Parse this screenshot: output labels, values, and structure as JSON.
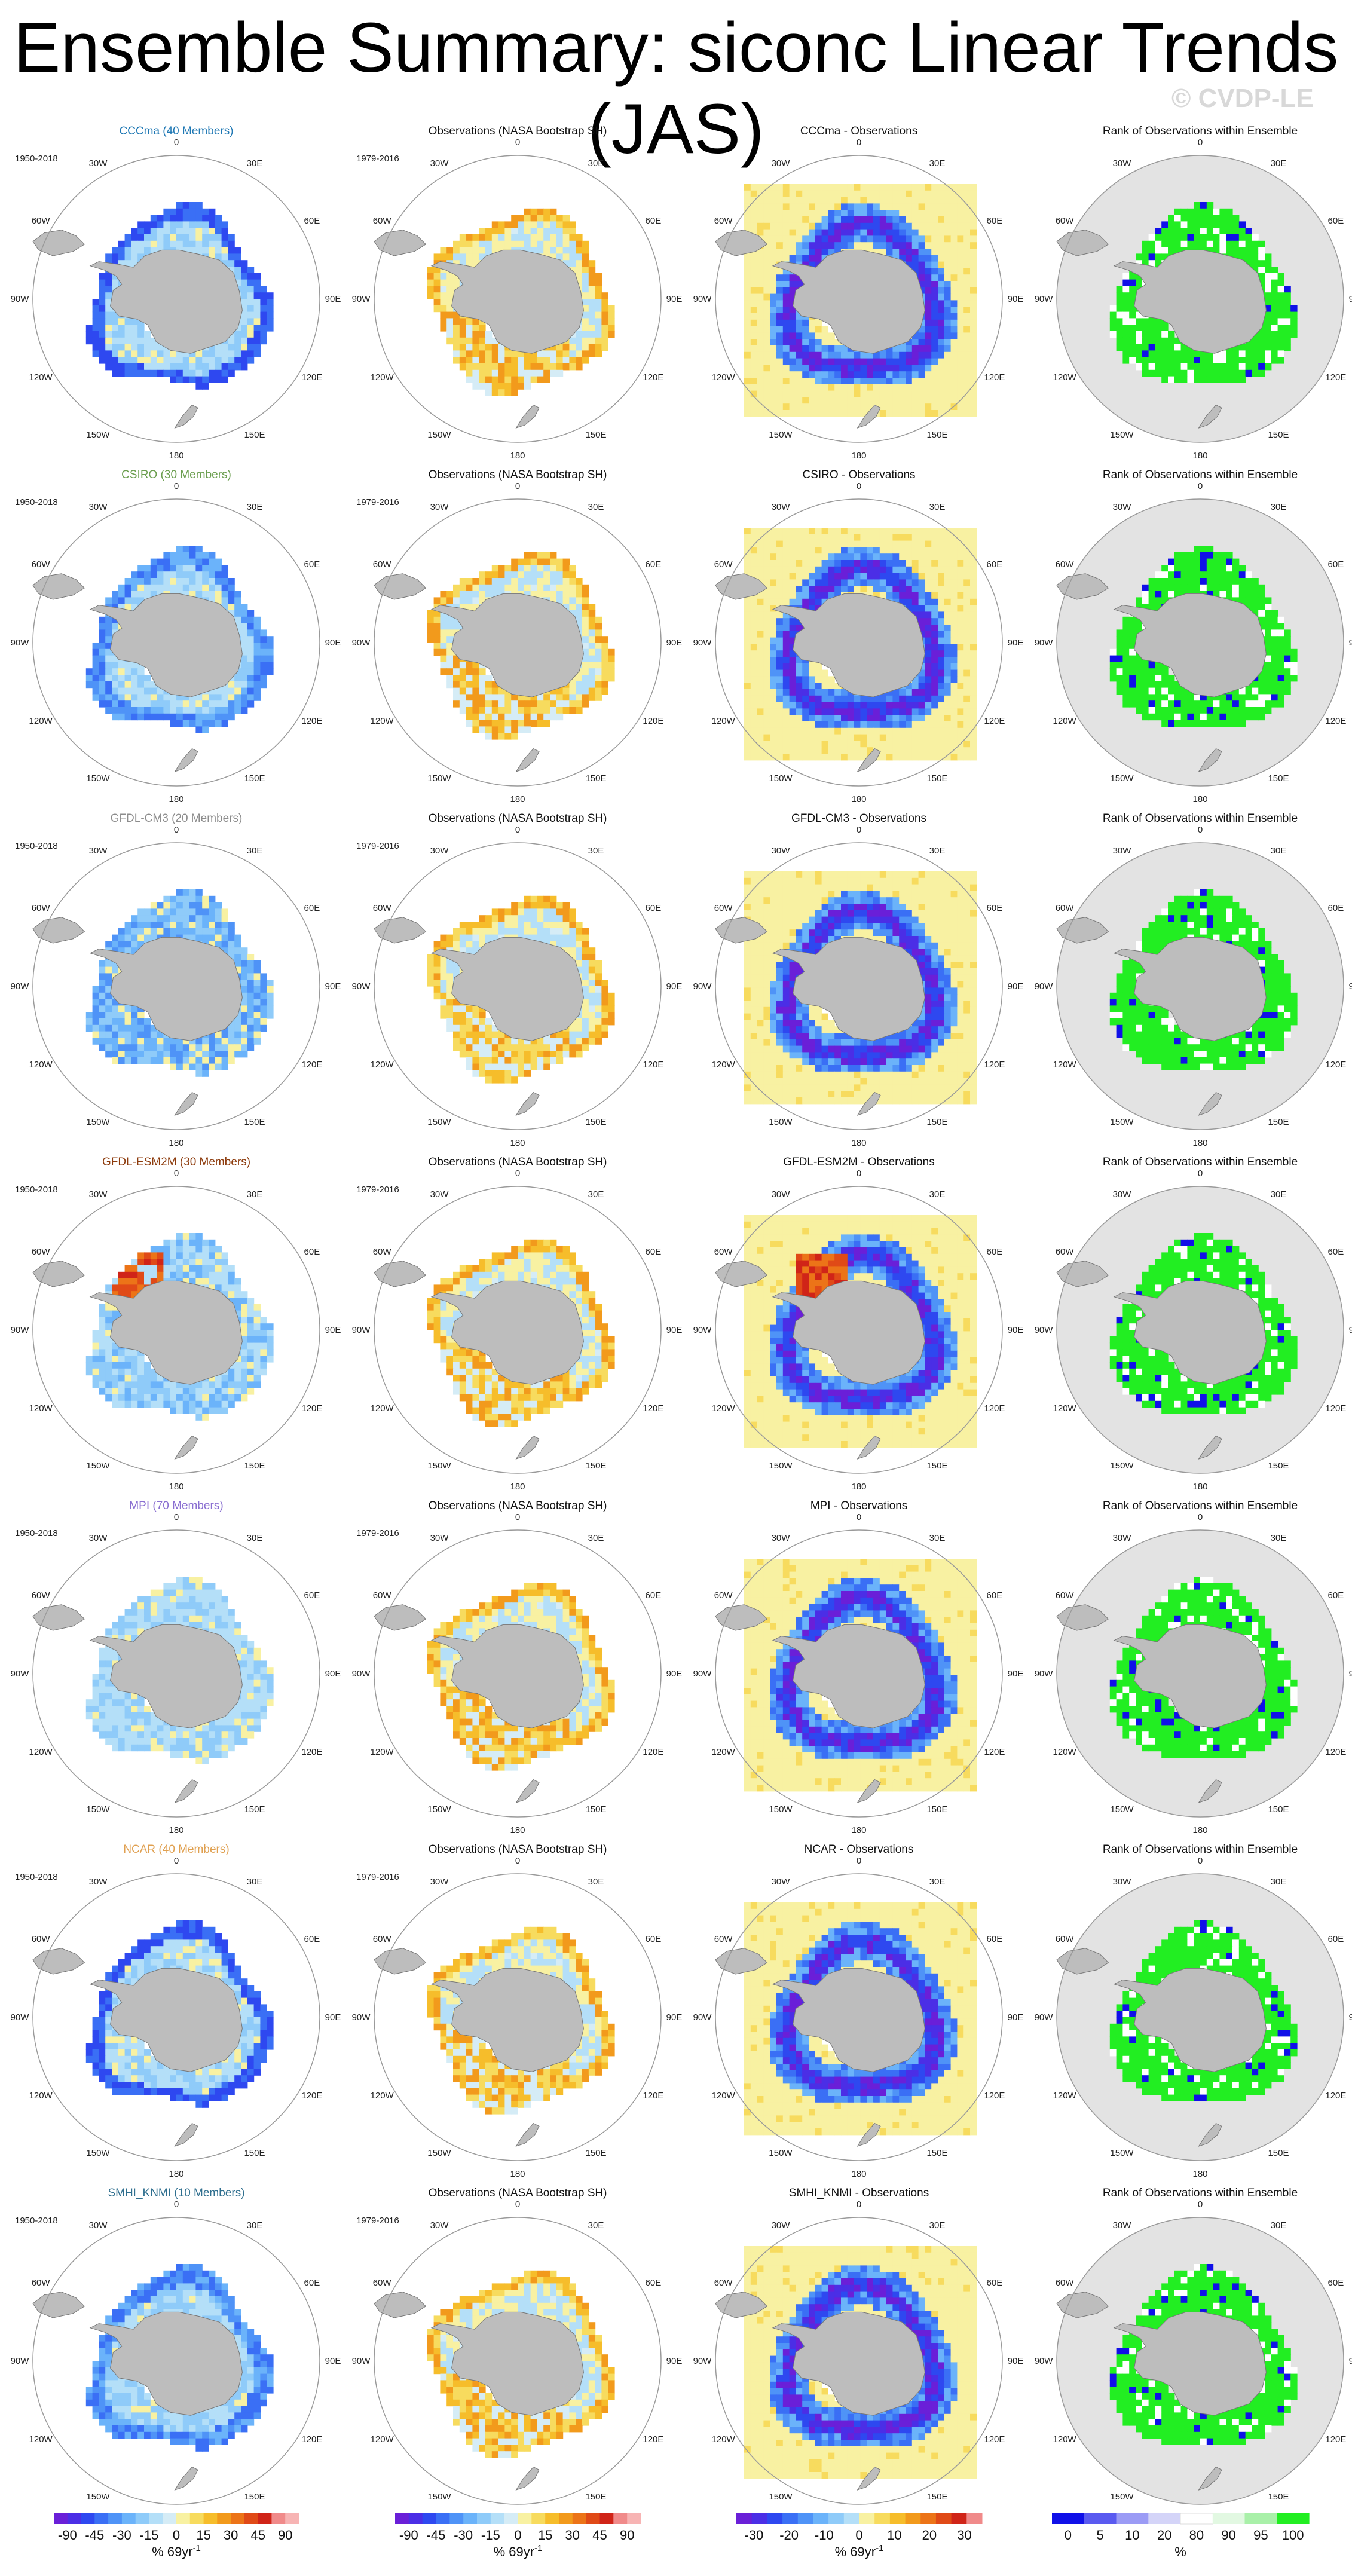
{
  "title": "Ensemble Summary: siconc Linear Trends (JAS)",
  "watermark": "© CVDP-LE",
  "colors": {
    "land": "#bdbdbd",
    "rank_background": "#e3e3e3",
    "rank_green": "#22ee22",
    "circle": "#9a9a9a"
  },
  "chart_data": {
    "type": "heatmap",
    "projection": "south-polar-stereographic",
    "variable": "siconc",
    "season": "JAS",
    "longitude_labels": [
      "0",
      "30E",
      "60E",
      "90E",
      "120E",
      "150E",
      "180",
      "150W",
      "120W",
      "90W",
      "60W",
      "30W"
    ],
    "columns": [
      {
        "kind": "model",
        "period": "1950-2018"
      },
      {
        "kind": "observations",
        "title": "Observations (NASA Bootstrap SH)",
        "period": "1979-2016"
      },
      {
        "kind": "difference",
        "title_suffix": " - Observations"
      },
      {
        "kind": "rank",
        "title": "Rank of Observations within Ensemble"
      }
    ],
    "rows": [
      {
        "model": "CCCma",
        "members": 40,
        "title": "CCCma (40 Members)",
        "title_color": "#1f78b4",
        "pattern": "strong-negative-ring"
      },
      {
        "model": "CSIRO",
        "members": 30,
        "title": "CSIRO (30 Members)",
        "title_color": "#6b9e4f",
        "pattern": "moderate-negative"
      },
      {
        "model": "GFDL-CM3",
        "members": 20,
        "title": "GFDL-CM3 (20 Members)",
        "title_color": "#8c8c8c",
        "pattern": "wide-negative"
      },
      {
        "model": "GFDL-ESM2M",
        "members": 30,
        "title": "GFDL-ESM2M (30 Members)",
        "title_color": "#8c3a0b",
        "pattern": "negative-with-positive-weddell"
      },
      {
        "model": "MPI",
        "members": 70,
        "title": "MPI (70 Members)",
        "title_color": "#8a6fd1",
        "pattern": "weak-negative"
      },
      {
        "model": "NCAR",
        "members": 40,
        "title": "NCAR (40 Members)",
        "title_color": "#e0a050",
        "pattern": "strong-negative-ring"
      },
      {
        "model": "SMHI_KNMI",
        "members": 10,
        "title": "SMHI_KNMI (10 Members)",
        "title_color": "#2f6f8f",
        "pattern": "moderate-negative-ring"
      }
    ],
    "colorbars": [
      {
        "name": "trend",
        "ticks": [
          "-90",
          "-45",
          "-30",
          "-15",
          "0",
          "15",
          "30",
          "45",
          "90"
        ],
        "unit": "% 69yr",
        "unit_sup": "-1",
        "colors": [
          "#6a1fd8",
          "#4b2ee6",
          "#2e48f0",
          "#3a6ff5",
          "#4f93f7",
          "#6bb3fa",
          "#8fcbf9",
          "#b4dff8",
          "#d5ecf6",
          "#f8f1a2",
          "#f7db5e",
          "#f6bd2b",
          "#f29a1c",
          "#ec7418",
          "#e04a17",
          "#d02418",
          "#f08a8a",
          "#f7b4b4"
        ]
      },
      {
        "name": "trend-obs",
        "ticks": [
          "-90",
          "-45",
          "-30",
          "-15",
          "0",
          "15",
          "30",
          "45",
          "90"
        ],
        "unit": "% 69yr",
        "unit_sup": "-1",
        "colors": [
          "#6a1fd8",
          "#4b2ee6",
          "#2e48f0",
          "#3a6ff5",
          "#4f93f7",
          "#6bb3fa",
          "#8fcbf9",
          "#b4dff8",
          "#d5ecf6",
          "#f8f1a2",
          "#f7db5e",
          "#f6bd2b",
          "#f29a1c",
          "#ec7418",
          "#e04a17",
          "#d02418",
          "#f08a8a",
          "#f7b4b4"
        ]
      },
      {
        "name": "difference",
        "ticks": [
          "-30",
          "-20",
          "-10",
          "0",
          "10",
          "20",
          "30"
        ],
        "unit": "% 69yr",
        "unit_sup": "-1",
        "colors": [
          "#6a1fd8",
          "#4b2ee6",
          "#2e48f0",
          "#3a6ff5",
          "#4f93f7",
          "#6bb3fa",
          "#8fcbf9",
          "#b4dff8",
          "#f8f1a2",
          "#f7db5e",
          "#f6bd2b",
          "#f29a1c",
          "#ec7418",
          "#e04a17",
          "#d02418",
          "#f08a8a"
        ]
      },
      {
        "name": "rank",
        "ticks": [
          "0",
          "5",
          "10",
          "20",
          "80",
          "90",
          "95",
          "100"
        ],
        "unit": "%",
        "unit_sup": "",
        "colors": [
          "#1010e8",
          "#5a5af0",
          "#9b9bf5",
          "#d4d4f8",
          "#ffffff",
          "#e2f8e2",
          "#a9f0a9",
          "#22ee22"
        ]
      }
    ]
  }
}
